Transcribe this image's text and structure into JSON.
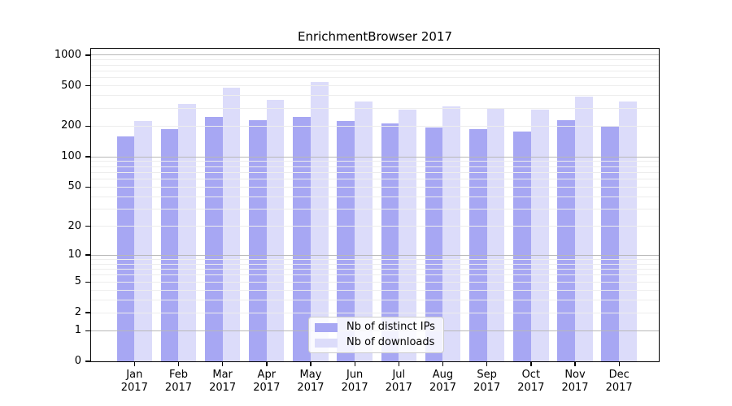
{
  "chart_data": {
    "type": "bar",
    "title": "EnrichmentBrowser 2017",
    "categories": [
      "Jan",
      "Feb",
      "Mar",
      "Apr",
      "May",
      "Jun",
      "Jul",
      "Aug",
      "Sep",
      "Oct",
      "Nov",
      "Dec"
    ],
    "year_label": "2017",
    "series": [
      {
        "name": "Nb of distinct IPs",
        "color": "#a7a7f3",
        "values": [
          160,
          187,
          246,
          231,
          247,
          224,
          213,
          193,
          188,
          179,
          231,
          201
        ]
      },
      {
        "name": "Nb of downloads",
        "color": "#dcdcfa",
        "values": [
          225,
          333,
          477,
          363,
          540,
          352,
          291,
          312,
          302,
          289,
          391,
          348
        ]
      }
    ],
    "xlabel": "",
    "ylabel": "",
    "y_axis": {
      "scale": "log1p",
      "tick_values": [
        1000,
        500,
        200,
        100,
        50,
        20,
        10,
        5,
        2,
        1,
        0
      ],
      "major_gridline_values": [
        1,
        10,
        100,
        1000
      ],
      "minor_gridline_values": [
        2,
        3,
        4,
        5,
        6,
        7,
        8,
        9,
        20,
        30,
        40,
        50,
        60,
        70,
        80,
        90,
        200,
        300,
        400,
        500,
        600,
        700,
        800,
        900
      ],
      "ylim": [
        0,
        1150
      ]
    },
    "grid": true,
    "legend_position": "lower center",
    "colors": {
      "background": "#ffffff",
      "spine": "#000000",
      "major_grid": "#b8b8b8",
      "minor_grid": "#ededed",
      "text": "#000000",
      "legend_border": "#cccccc"
    }
  }
}
